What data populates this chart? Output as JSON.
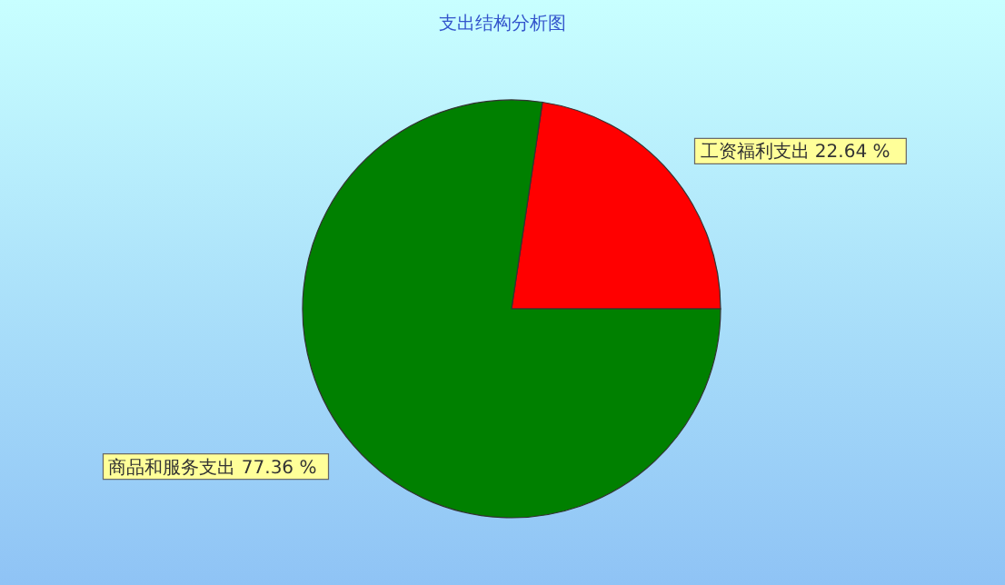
{
  "chart_data": {
    "type": "pie",
    "title": "支出结构分析图",
    "categories": [
      "工资福利支出",
      "商品和服务支出"
    ],
    "values": [
      22.64,
      77.36
    ],
    "value_labels": [
      "22.64 %",
      "77.36 %"
    ],
    "colors": [
      "#ff0000",
      "#008000"
    ],
    "legend": false
  }
}
